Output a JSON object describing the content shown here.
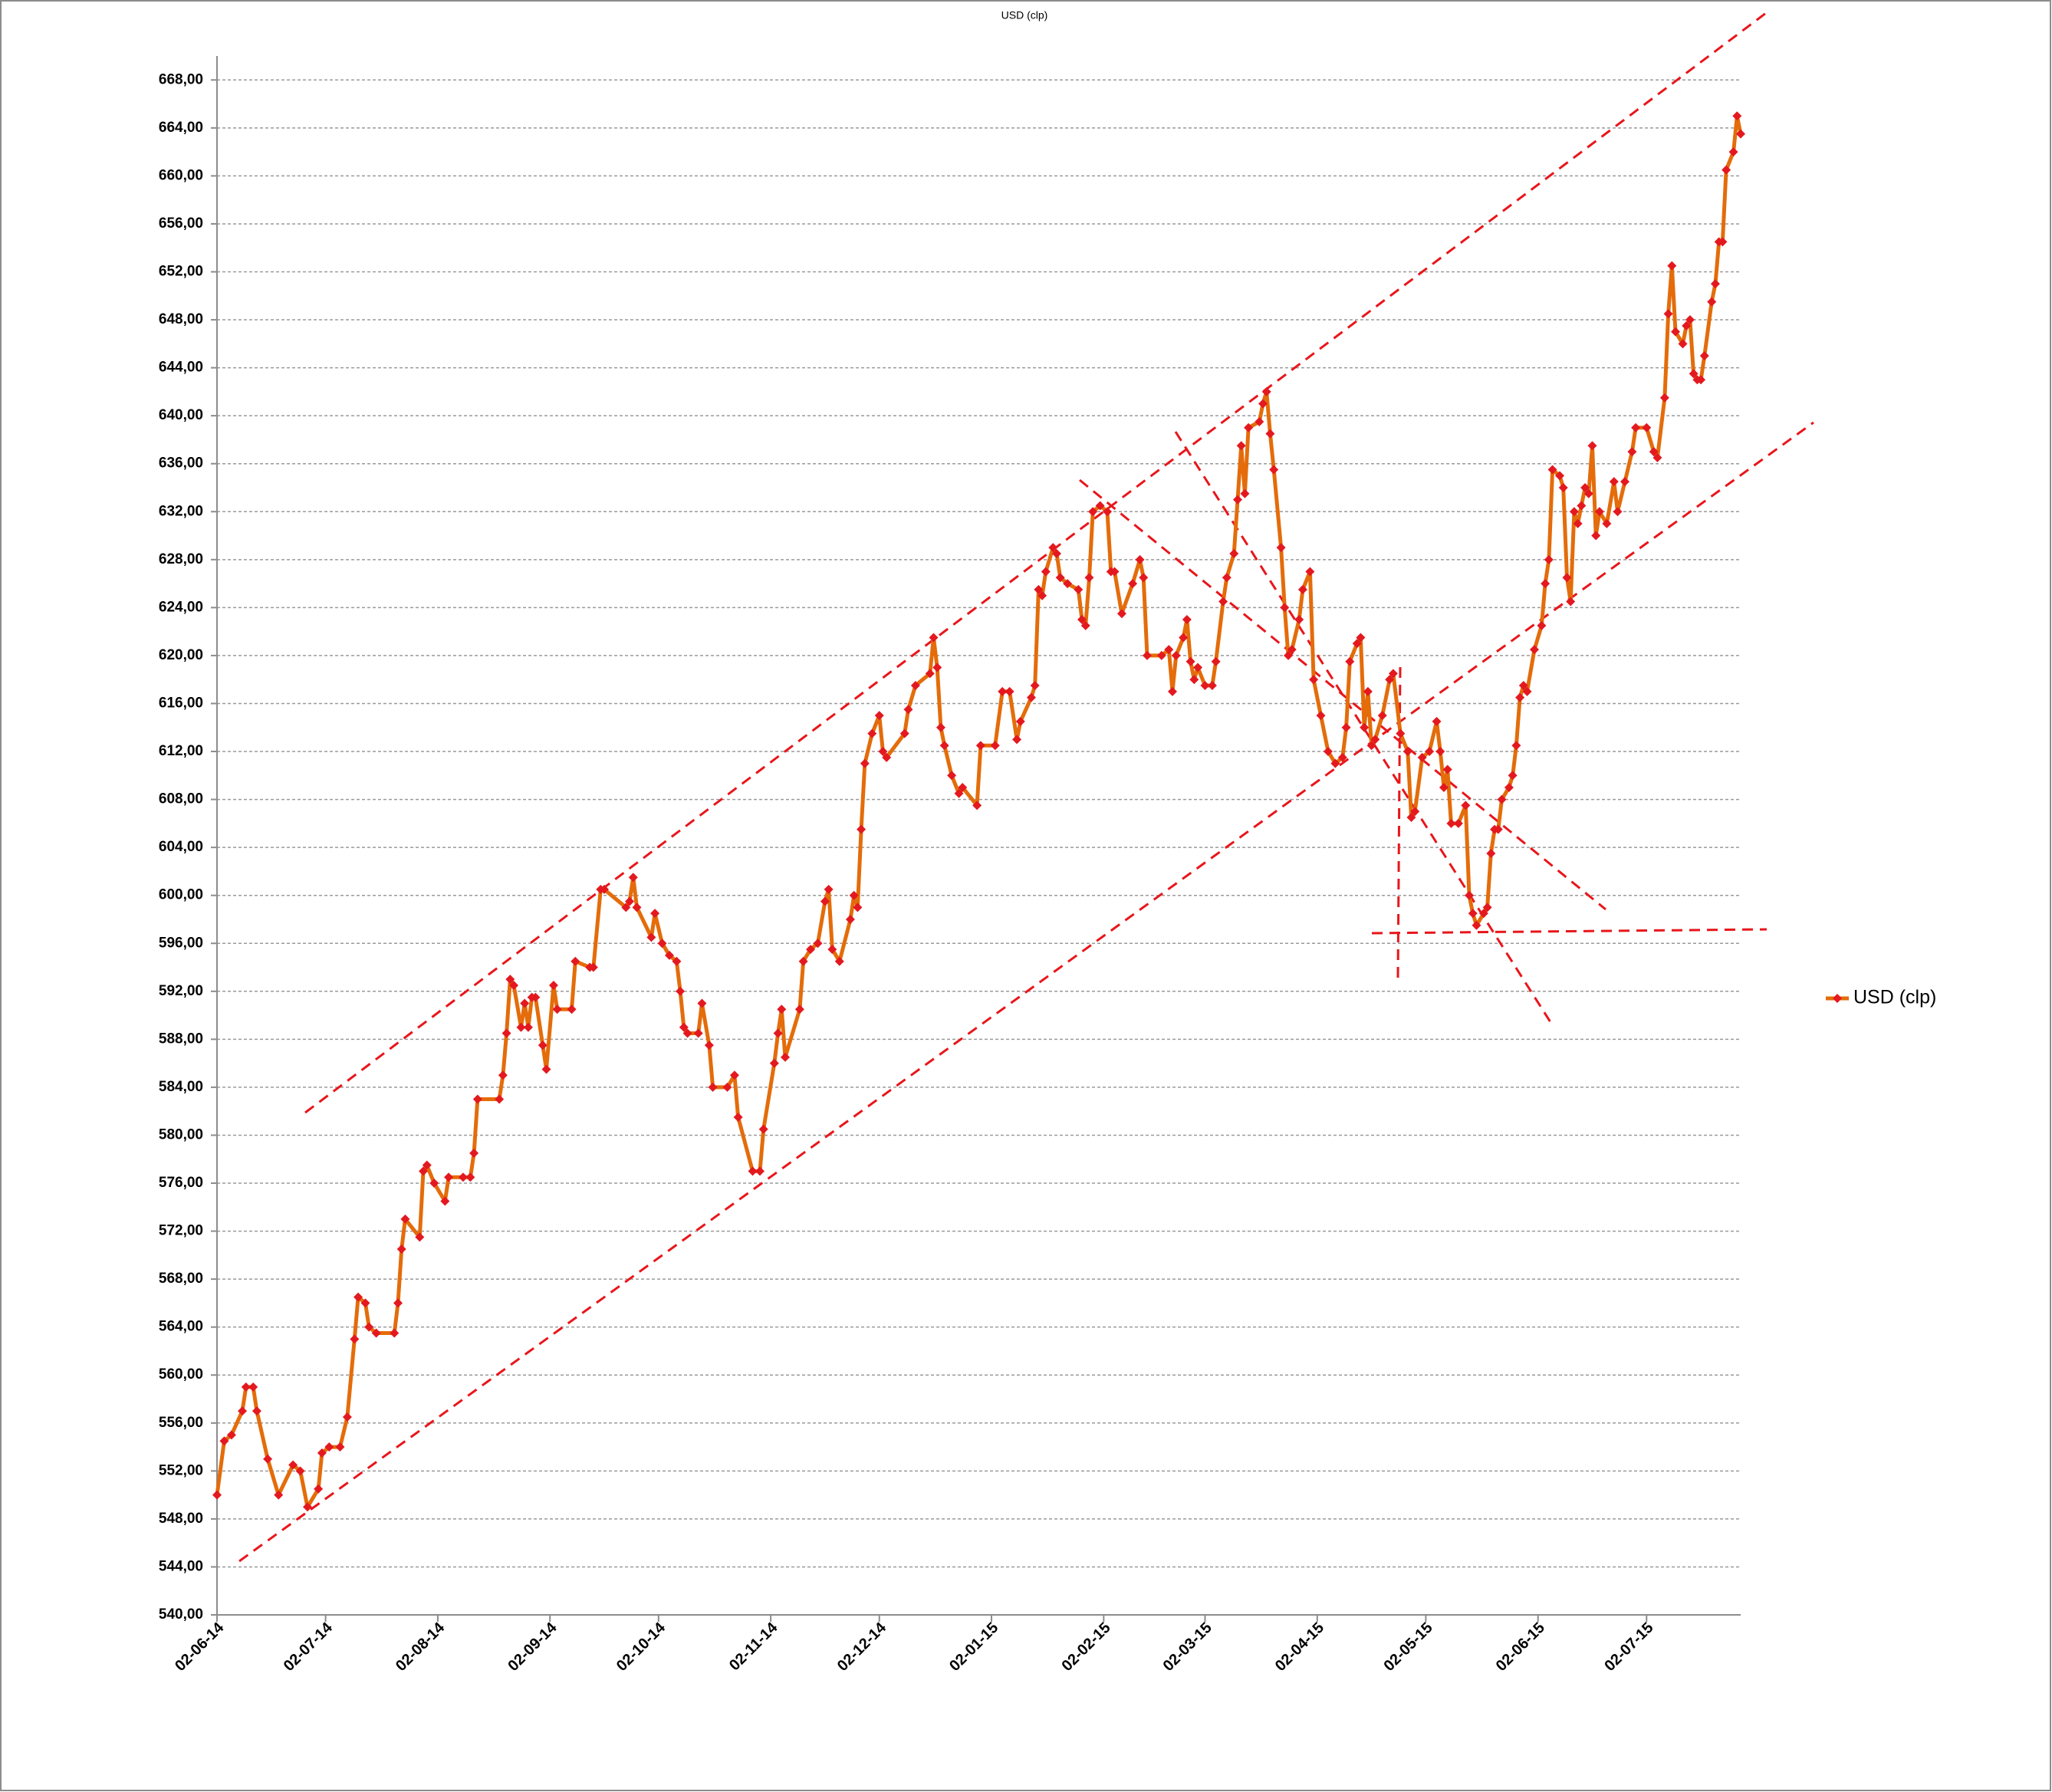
{
  "chart_data": {
    "type": "line",
    "title": "USD (clp)",
    "grid": true,
    "legend": "right",
    "xlim": [
      "2014-06-02",
      "2015-07-28"
    ],
    "ylim": [
      540,
      670
    ],
    "yticks": [
      {
        "value": 540,
        "label": "540,00"
      },
      {
        "value": 544,
        "label": "544,00"
      },
      {
        "value": 548,
        "label": "548,00"
      },
      {
        "value": 552,
        "label": "552,00"
      },
      {
        "value": 556,
        "label": "556,00"
      },
      {
        "value": 560,
        "label": "560,00"
      },
      {
        "value": 564,
        "label": "564,00"
      },
      {
        "value": 568,
        "label": "568,00"
      },
      {
        "value": 572,
        "label": "572,00"
      },
      {
        "value": 576,
        "label": "576,00"
      },
      {
        "value": 580,
        "label": "580,00"
      },
      {
        "value": 584,
        "label": "584,00"
      },
      {
        "value": 588,
        "label": "588,00"
      },
      {
        "value": 592,
        "label": "592,00"
      },
      {
        "value": 596,
        "label": "596,00"
      },
      {
        "value": 600,
        "label": "600,00"
      },
      {
        "value": 604,
        "label": "604,00"
      },
      {
        "value": 608,
        "label": "608,00"
      },
      {
        "value": 612,
        "label": "612,00"
      },
      {
        "value": 616,
        "label": "616,00"
      },
      {
        "value": 620,
        "label": "620,00"
      },
      {
        "value": 624,
        "label": "624,00"
      },
      {
        "value": 628,
        "label": "628,00"
      },
      {
        "value": 632,
        "label": "632,00"
      },
      {
        "value": 636,
        "label": "636,00"
      },
      {
        "value": 640,
        "label": "640,00"
      },
      {
        "value": 644,
        "label": "644,00"
      },
      {
        "value": 648,
        "label": "648,00"
      },
      {
        "value": 652,
        "label": "652,00"
      },
      {
        "value": 656,
        "label": "656,00"
      },
      {
        "value": 660,
        "label": "660,00"
      },
      {
        "value": 664,
        "label": "664,00"
      },
      {
        "value": 668,
        "label": "668,00"
      }
    ],
    "xticks": [
      {
        "value": "2014-06-02",
        "label": "02-06-14"
      },
      {
        "value": "2014-07-02",
        "label": "02-07-14"
      },
      {
        "value": "2014-08-02",
        "label": "02-08-14"
      },
      {
        "value": "2014-09-02",
        "label": "02-09-14"
      },
      {
        "value": "2014-10-02",
        "label": "02-10-14"
      },
      {
        "value": "2014-11-02",
        "label": "02-11-14"
      },
      {
        "value": "2014-12-02",
        "label": "02-12-14"
      },
      {
        "value": "2015-01-02",
        "label": "02-01-15"
      },
      {
        "value": "2015-02-02",
        "label": "02-02-15"
      },
      {
        "value": "2015-03-02",
        "label": "02-03-15"
      },
      {
        "value": "2015-04-02",
        "label": "02-04-15"
      },
      {
        "value": "2015-05-02",
        "label": "02-05-15"
      },
      {
        "value": "2015-06-02",
        "label": "02-06-15"
      },
      {
        "value": "2015-07-02",
        "label": "02-07-15"
      }
    ],
    "x": [
      "2014-06-02",
      "2014-06-04",
      "2014-06-06",
      "2014-06-09",
      "2014-06-10",
      "2014-06-12",
      "2014-06-13",
      "2014-06-16",
      "2014-06-19",
      "2014-06-23",
      "2014-06-25",
      "2014-06-27",
      "2014-06-30",
      "2014-07-01",
      "2014-07-03",
      "2014-07-06",
      "2014-07-08",
      "2014-07-10",
      "2014-07-11",
      "2014-07-13",
      "2014-07-14",
      "2014-07-16",
      "2014-07-21",
      "2014-07-22",
      "2014-07-23",
      "2014-07-24",
      "2014-07-28",
      "2014-07-29",
      "2014-07-30",
      "2014-08-01",
      "2014-08-04",
      "2014-08-05",
      "2014-08-09",
      "2014-08-11",
      "2014-08-12",
      "2014-08-13",
      "2014-08-19",
      "2014-08-20",
      "2014-08-21",
      "2014-08-22",
      "2014-08-23",
      "2014-08-25",
      "2014-08-26",
      "2014-08-27",
      "2014-08-28",
      "2014-08-29",
      "2014-08-31",
      "2014-09-01",
      "2014-09-03",
      "2014-09-04",
      "2014-09-08",
      "2014-09-09",
      "2014-09-13",
      "2014-09-14",
      "2014-09-16",
      "2014-09-17",
      "2014-09-23",
      "2014-09-24",
      "2014-09-25",
      "2014-09-26",
      "2014-09-30",
      "2014-10-01",
      "2014-10-03",
      "2014-10-05",
      "2014-10-07",
      "2014-10-08",
      "2014-10-09",
      "2014-10-10",
      "2014-10-13",
      "2014-10-14",
      "2014-10-16",
      "2014-10-17",
      "2014-10-21",
      "2014-10-23",
      "2014-10-24",
      "2014-10-28",
      "2014-10-30",
      "2014-10-31",
      "2014-11-03",
      "2014-11-04",
      "2014-11-05",
      "2014-11-06",
      "2014-11-10",
      "2014-11-11",
      "2014-11-13",
      "2014-11-15",
      "2014-11-17",
      "2014-11-18",
      "2014-11-19",
      "2014-11-21",
      "2014-11-24",
      "2014-11-25",
      "2014-11-26",
      "2014-11-27",
      "2014-11-28",
      "2014-11-30",
      "2014-12-02",
      "2014-12-03",
      "2014-12-04",
      "2014-12-09",
      "2014-12-10",
      "2014-12-12",
      "2014-12-16",
      "2014-12-17",
      "2014-12-18",
      "2014-12-19",
      "2014-12-20",
      "2014-12-22",
      "2014-12-24",
      "2014-12-25",
      "2014-12-29",
      "2014-12-30",
      "2015-01-03",
      "2015-01-05",
      "2015-01-07",
      "2015-01-09",
      "2015-01-10",
      "2015-01-13",
      "2015-01-14",
      "2015-01-15",
      "2015-01-16",
      "2015-01-17",
      "2015-01-19",
      "2015-01-20",
      "2015-01-21",
      "2015-01-23",
      "2015-01-26",
      "2015-01-27",
      "2015-01-28",
      "2015-01-29",
      "2015-01-30",
      "2015-02-01",
      "2015-02-03",
      "2015-02-04",
      "2015-02-05",
      "2015-02-07",
      "2015-02-10",
      "2015-02-12",
      "2015-02-13",
      "2015-02-14",
      "2015-02-18",
      "2015-02-20",
      "2015-02-21",
      "2015-02-22",
      "2015-02-24",
      "2015-02-25",
      "2015-02-26",
      "2015-02-27",
      "2015-02-28",
      "2015-03-02",
      "2015-03-04",
      "2015-03-05",
      "2015-03-07",
      "2015-03-08",
      "2015-03-10",
      "2015-03-11",
      "2015-03-12",
      "2015-03-13",
      "2015-03-14",
      "2015-03-17",
      "2015-03-18",
      "2015-03-19",
      "2015-03-20",
      "2015-03-21",
      "2015-03-23",
      "2015-03-24",
      "2015-03-25",
      "2015-03-26",
      "2015-03-28",
      "2015-03-29",
      "2015-03-31",
      "2015-04-01",
      "2015-04-03",
      "2015-04-05",
      "2015-04-07",
      "2015-04-09",
      "2015-04-10",
      "2015-04-11",
      "2015-04-13",
      "2015-04-14",
      "2015-04-15",
      "2015-04-16",
      "2015-04-17",
      "2015-04-18",
      "2015-04-20",
      "2015-04-22",
      "2015-04-23",
      "2015-04-25",
      "2015-04-27",
      "2015-04-28",
      "2015-04-29",
      "2015-05-01",
      "2015-05-03",
      "2015-05-05",
      "2015-05-06",
      "2015-05-07",
      "2015-05-08",
      "2015-05-09",
      "2015-05-11",
      "2015-05-13",
      "2015-05-14",
      "2015-05-15",
      "2015-05-16",
      "2015-05-18",
      "2015-05-19",
      "2015-05-20",
      "2015-05-21",
      "2015-05-22",
      "2015-05-23",
      "2015-05-25",
      "2015-05-26",
      "2015-05-27",
      "2015-05-28",
      "2015-05-29",
      "2015-05-30",
      "2015-06-01",
      "2015-06-03",
      "2015-06-04",
      "2015-06-05",
      "2015-06-06",
      "2015-06-08",
      "2015-06-09",
      "2015-06-10",
      "2015-06-11",
      "2015-06-12",
      "2015-06-13",
      "2015-06-14",
      "2015-06-15",
      "2015-06-16",
      "2015-06-17",
      "2015-06-18",
      "2015-06-19",
      "2015-06-21",
      "2015-06-23",
      "2015-06-24",
      "2015-06-26",
      "2015-06-28",
      "2015-06-29",
      "2015-07-02",
      "2015-07-04",
      "2015-07-05",
      "2015-07-07",
      "2015-07-08",
      "2015-07-09",
      "2015-07-10",
      "2015-07-12",
      "2015-07-13",
      "2015-07-14",
      "2015-07-15",
      "2015-07-16",
      "2015-07-17",
      "2015-07-18",
      "2015-07-20",
      "2015-07-21",
      "2015-07-22",
      "2015-07-23",
      "2015-07-24",
      "2015-07-26",
      "2015-07-27",
      "2015-07-28"
    ],
    "series": [
      {
        "name": "USD (clp)",
        "color": "#e46c0a",
        "marker_color": "#e3191f",
        "values": [
          550,
          554.5,
          555,
          557,
          559,
          559,
          557,
          553,
          550,
          552.5,
          552,
          549,
          550.5,
          553.5,
          554,
          554,
          556.5,
          563,
          566.5,
          566,
          564,
          563.5,
          563.5,
          566,
          570.5,
          573,
          571.5,
          577,
          577.5,
          576,
          574.5,
          576.5,
          576.5,
          576.5,
          578.5,
          583,
          583,
          585,
          588.5,
          593,
          592.5,
          589,
          591,
          589,
          591.5,
          591.5,
          587.5,
          585.5,
          592.5,
          590.5,
          590.5,
          594.5,
          594,
          594,
          600.5,
          600.5,
          599,
          599.5,
          601.5,
          599,
          596.5,
          598.5,
          596,
          595,
          594.5,
          592,
          589,
          588.5,
          588.5,
          591,
          587.5,
          584,
          584,
          585,
          581.5,
          577,
          577,
          580.5,
          586,
          588.5,
          590.5,
          586.5,
          590.5,
          594.5,
          595.5,
          596,
          599.5,
          600.5,
          595.5,
          594.5,
          598,
          600,
          599,
          605.5,
          611,
          613.5,
          615,
          612,
          611.5,
          613.5,
          615.5,
          617.5,
          618.5,
          621.5,
          619,
          614,
          612.5,
          610,
          608.5,
          609,
          607.5,
          612.5,
          612.5,
          617,
          617,
          613,
          614.5,
          616.5,
          617.5,
          625.5,
          625,
          627,
          629,
          628.5,
          626.5,
          626,
          625.5,
          623,
          622.5,
          626.5,
          632,
          632.5,
          632,
          627,
          627,
          623.5,
          626,
          628,
          626.5,
          620,
          620,
          620.5,
          617,
          620,
          621.5,
          623,
          619.5,
          618,
          619,
          617.5,
          617.5,
          619.5,
          624.5,
          626.5,
          628.5,
          633,
          637.5,
          633.5,
          639,
          639.5,
          641,
          642,
          638.5,
          635.5,
          629,
          624,
          620,
          620.5,
          623,
          625.5,
          627,
          618,
          615,
          612,
          611,
          611.5,
          614,
          619.5,
          621,
          621.5,
          614,
          617,
          612.5,
          613,
          615,
          618,
          618.5,
          613.5,
          612,
          606.5,
          607,
          611.5,
          612,
          614.5,
          612,
          609,
          610.5,
          606,
          606,
          607.5,
          600,
          598.5,
          597.5,
          598.5,
          599,
          603.5,
          605.5,
          605.5,
          608,
          609,
          610,
          612.5,
          616.5,
          617.5,
          617,
          620.5,
          622.5,
          626,
          628,
          635.5,
          635,
          634,
          626.5,
          624.5,
          632,
          631,
          632.5,
          634,
          633.5,
          637.5,
          630,
          632,
          631,
          634.5,
          632,
          634.5,
          637,
          639,
          639,
          637,
          636.5,
          641.5,
          648.5,
          652.5,
          647,
          646,
          647.5,
          648,
          643.5,
          643,
          643,
          645,
          649.5,
          651,
          654.5,
          654.5,
          660.5,
          662,
          665,
          663.5
        ]
      }
    ]
  }
}
